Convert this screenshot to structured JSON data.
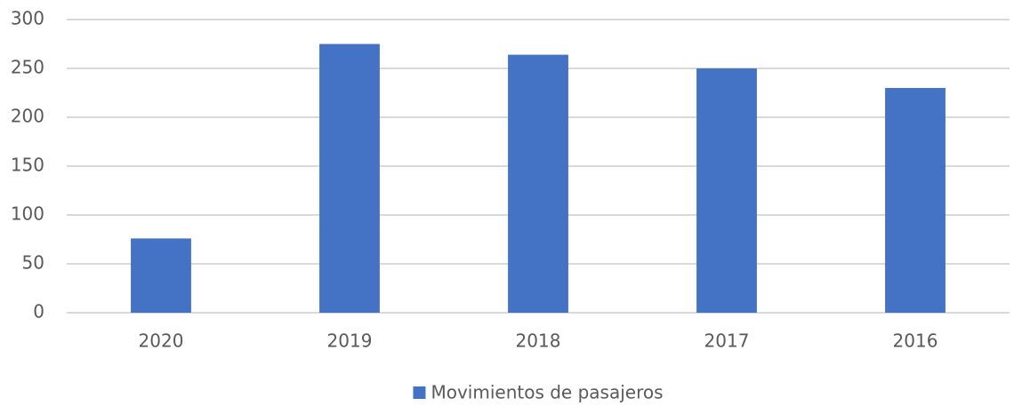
{
  "chart_data": {
    "type": "bar",
    "categories": [
      "2020",
      "2019",
      "2018",
      "2017",
      "2016"
    ],
    "series": [
      {
        "name": "Movimientos de pasajeros",
        "color": "#4472c4",
        "values": [
          76,
          275,
          264,
          250,
          230
        ]
      }
    ],
    "ylim": [
      0,
      300
    ],
    "yticks": [
      0,
      50,
      100,
      150,
      200,
      250,
      300
    ],
    "grid": true,
    "legend": "bottom"
  }
}
